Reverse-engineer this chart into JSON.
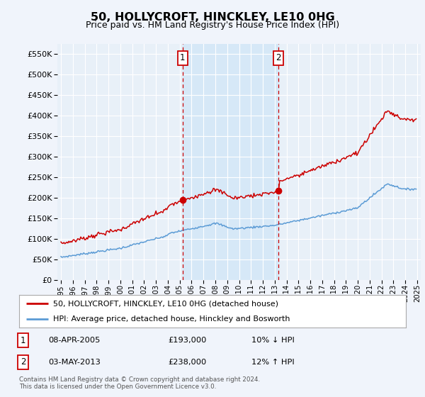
{
  "title": "50, HOLLYCROFT, HINCKLEY, LE10 0HG",
  "subtitle": "Price paid vs. HM Land Registry's House Price Index (HPI)",
  "legend_line1": "50, HOLLYCROFT, HINCKLEY, LE10 0HG (detached house)",
  "legend_line2": "HPI: Average price, detached house, Hinckley and Bosworth",
  "transaction1_date": "08-APR-2005",
  "transaction1_price": "£193,000",
  "transaction1_hpi": "10% ↓ HPI",
  "transaction2_date": "03-MAY-2013",
  "transaction2_price": "£238,000",
  "transaction2_hpi": "12% ↑ HPI",
  "footnote": "Contains HM Land Registry data © Crown copyright and database right 2024.\nThis data is licensed under the Open Government Licence v3.0.",
  "red_color": "#cc0000",
  "blue_color": "#5b9bd5",
  "shade_color": "#d6e8f7",
  "vline1_x": 2005.25,
  "vline2_x": 2013.33,
  "ylim_min": 0,
  "ylim_max": 575000,
  "xlim_min": 1994.7,
  "xlim_max": 2025.3,
  "bg_color": "#f0f4fb",
  "plot_bg": "#e8f0f8",
  "grid_color": "#ffffff",
  "transaction1_value": 193000,
  "transaction2_value": 238000
}
